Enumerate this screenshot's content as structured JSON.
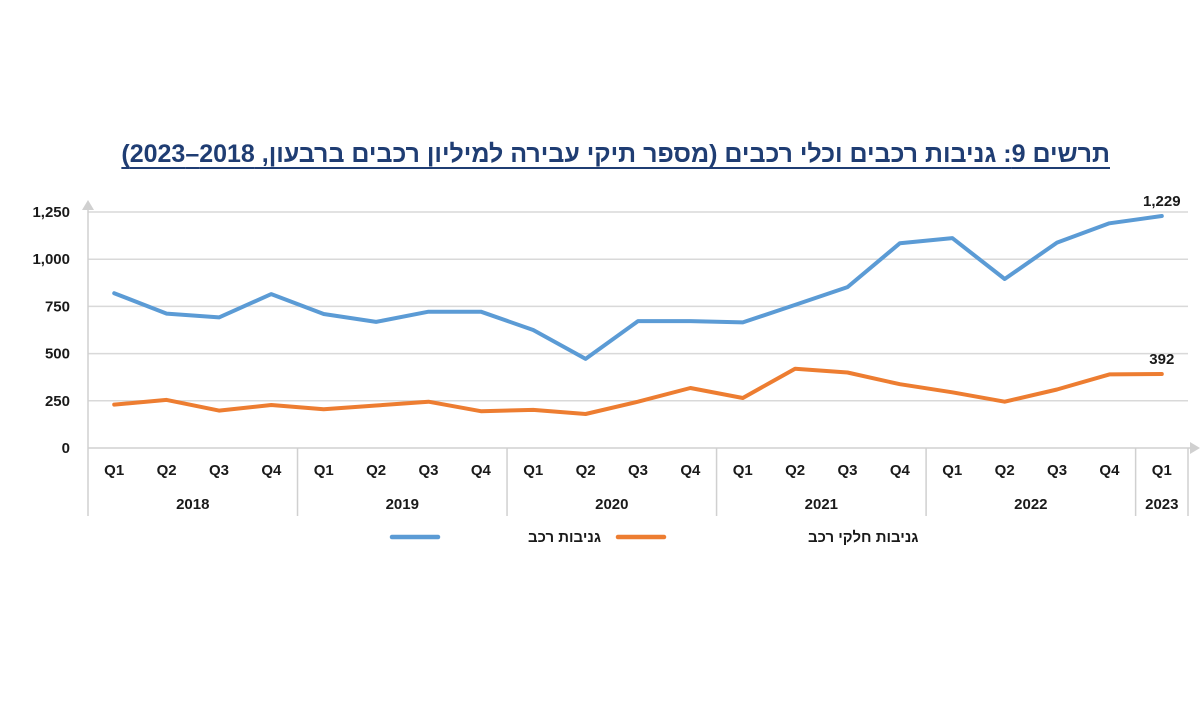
{
  "title": "תרשים 9: גניבות רכבים וכלי רכבים (מספר תיקי עבירה למיליון רכבים ברבעון, 2018–2023)",
  "colors": {
    "series_1": "#5b9bd5",
    "series_2": "#ed7d31",
    "grid": "#d9d9d9",
    "title": "#1f3d73"
  },
  "chart_data": {
    "type": "line",
    "title": "תרשים 9: גניבות רכבים וכלי רכבים (מספר תיקי עבירה למיליון רכבים ברבעון, 2018–2023)",
    "x": [
      "Q1",
      "Q2",
      "Q3",
      "Q4",
      "Q1",
      "Q2",
      "Q3",
      "Q4",
      "Q1",
      "Q2",
      "Q3",
      "Q4",
      "Q1",
      "Q2",
      "Q3",
      "Q4",
      "Q1",
      "Q2",
      "Q3",
      "Q4",
      "Q1"
    ],
    "year_groups": [
      {
        "label": "2018",
        "quarters": 4
      },
      {
        "label": "2019",
        "quarters": 4
      },
      {
        "label": "2020",
        "quarters": 4
      },
      {
        "label": "2021",
        "quarters": 4
      },
      {
        "label": "2022",
        "quarters": 4
      },
      {
        "label": "2023",
        "quarters": 1
      }
    ],
    "ylim": [
      0,
      1250
    ],
    "yticks": [
      {
        "value": 0,
        "label": "0"
      },
      {
        "value": 250,
        "label": "250"
      },
      {
        "value": 500,
        "label": "500"
      },
      {
        "value": 750,
        "label": "750"
      },
      {
        "value": 1000,
        "label": "1,000"
      },
      {
        "value": 1250,
        "label": "1,250"
      }
    ],
    "grid": true,
    "legend_position": "bottom",
    "series": [
      {
        "name": "גניבות רכב",
        "color": "#5b9bd5",
        "values": [
          820,
          712,
          692,
          815,
          710,
          668,
          722,
          722,
          625,
          472,
          672,
          672,
          665,
          758,
          852,
          1085,
          1112,
          895,
          1088,
          1190,
          1229
        ],
        "end_label": "1,229"
      },
      {
        "name": "גניבות חלקי רכב",
        "color": "#ed7d31",
        "values": [
          230,
          255,
          198,
          228,
          205,
          225,
          245,
          195,
          202,
          180,
          245,
          318,
          265,
          420,
          400,
          338,
          295,
          245,
          310,
          390,
          392
        ],
        "end_label": "392"
      }
    ]
  }
}
